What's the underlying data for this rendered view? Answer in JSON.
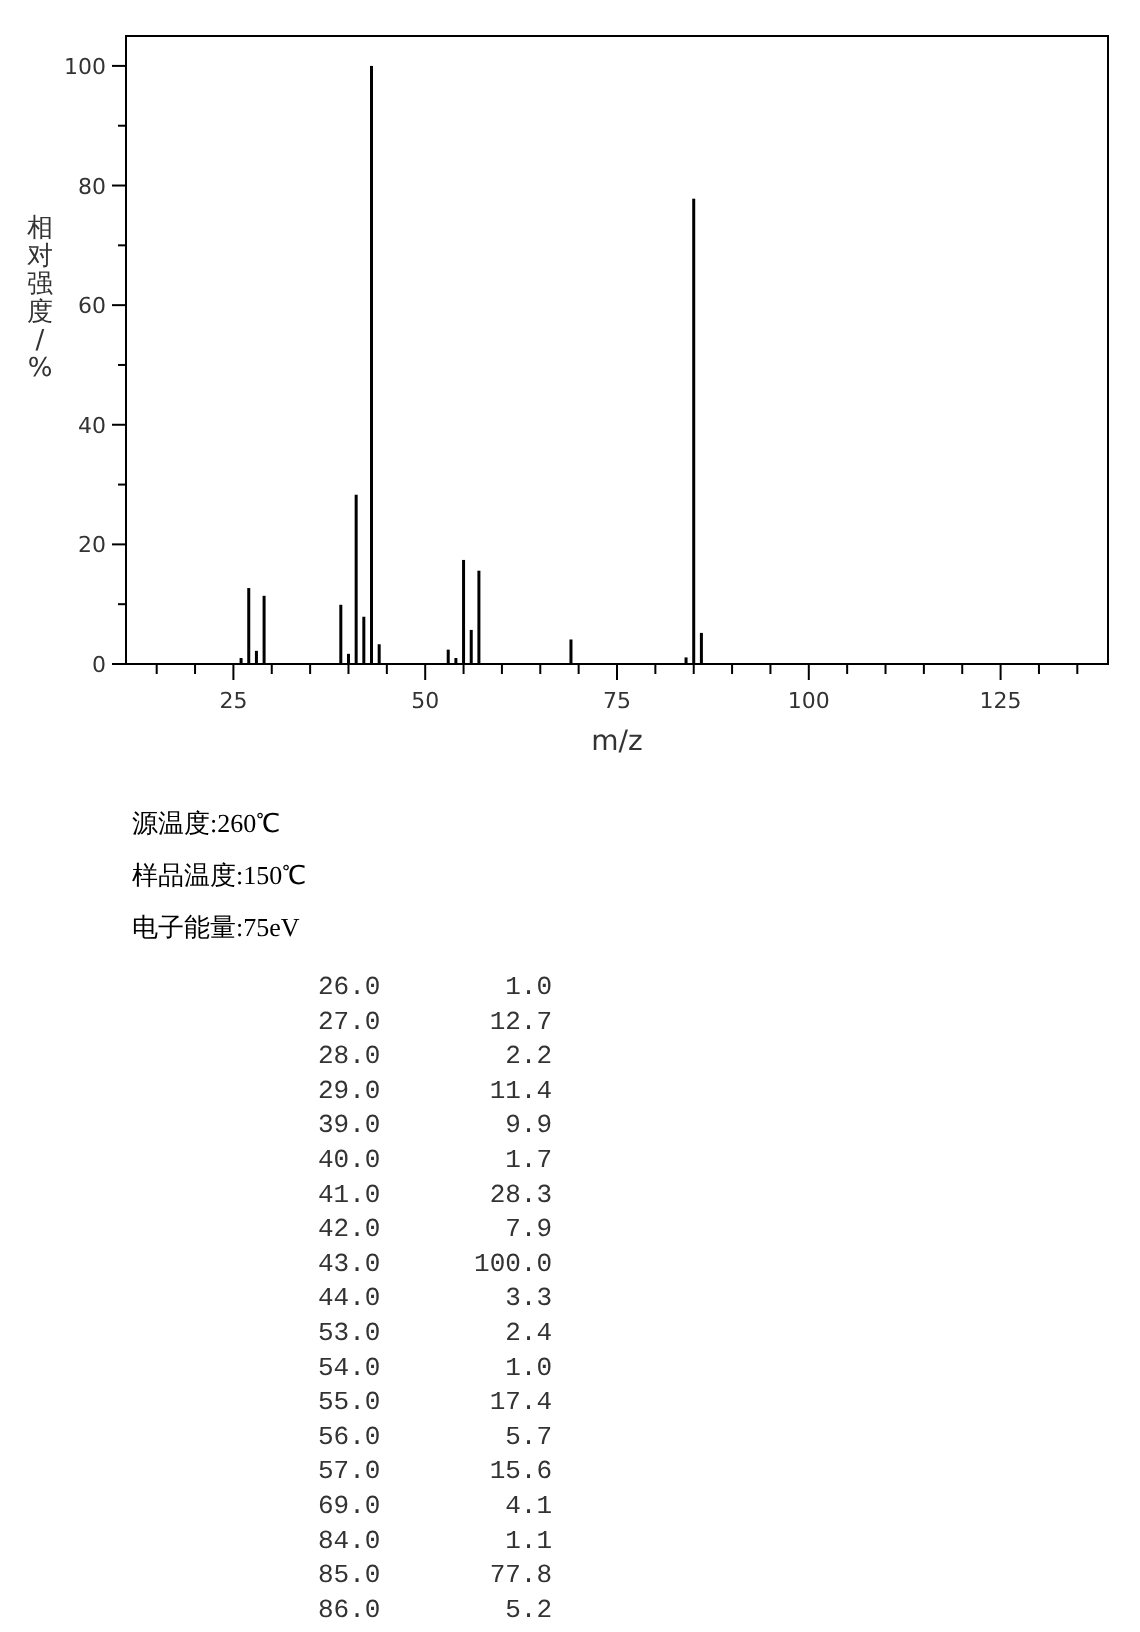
{
  "chart_data": {
    "type": "bar",
    "xlabel": "m/z",
    "ylabel": "相对强度/%",
    "x": [
      26,
      27,
      28,
      29,
      39,
      40,
      41,
      42,
      43,
      44,
      53,
      54,
      55,
      56,
      57,
      69,
      84,
      85,
      86
    ],
    "values": [
      1.0,
      12.7,
      2.2,
      11.4,
      9.9,
      1.7,
      28.3,
      7.9,
      100.0,
      3.3,
      2.4,
      1.0,
      17.4,
      5.7,
      15.6,
      4.1,
      1.1,
      77.8,
      5.2
    ],
    "color": "#000000",
    "xlim": [
      11,
      139
    ],
    "xticks": [
      {
        "value": 15,
        "label": null
      },
      {
        "value": 20,
        "label": null
      },
      25,
      {
        "value": 30,
        "label": null
      },
      {
        "value": 35,
        "label": null
      },
      {
        "value": 40,
        "label": null
      },
      {
        "value": 45,
        "label": null
      },
      50,
      {
        "value": 55,
        "label": null
      },
      {
        "value": 60,
        "label": null
      },
      {
        "value": 65,
        "label": null
      },
      {
        "value": 70,
        "label": null
      },
      75,
      {
        "value": 80,
        "label": null
      },
      {
        "value": 85,
        "label": null
      },
      {
        "value": 90,
        "label": null
      },
      {
        "value": 95,
        "label": null
      },
      100,
      {
        "value": 105,
        "label": null
      },
      {
        "value": 110,
        "label": null
      },
      {
        "value": 115,
        "label": null
      },
      {
        "value": 120,
        "label": null
      },
      125,
      {
        "value": 130,
        "label": null
      },
      {
        "value": 135,
        "label": null
      }
    ],
    "ylim": [
      0,
      105
    ],
    "yticks": [
      0,
      {
        "value": 10,
        "label": null
      },
      20,
      {
        "value": 30,
        "label": null
      },
      40,
      {
        "value": 50,
        "label": null
      },
      60,
      {
        "value": 70,
        "label": null
      },
      80,
      {
        "value": 90,
        "label": null
      },
      100
    ],
    "annotations": [
      "源温度:260℃",
      "样品温度:150℃",
      "电子能量:75eV",
      "26.0        1.0",
      "27.0       12.7",
      "28.0        2.2",
      "29.0       11.4",
      "39.0        9.9",
      "40.0        1.7",
      "41.0       28.3",
      "42.0        7.9",
      "43.0      100.0",
      "44.0        3.3",
      "53.0        2.4",
      "54.0        1.0",
      "55.0       17.4",
      "56.0        5.7",
      "57.0       15.6",
      "69.0        4.1",
      "84.0        1.1",
      "85.0       77.8",
      "86.0        5.2"
    ],
    "grid": false
  }
}
